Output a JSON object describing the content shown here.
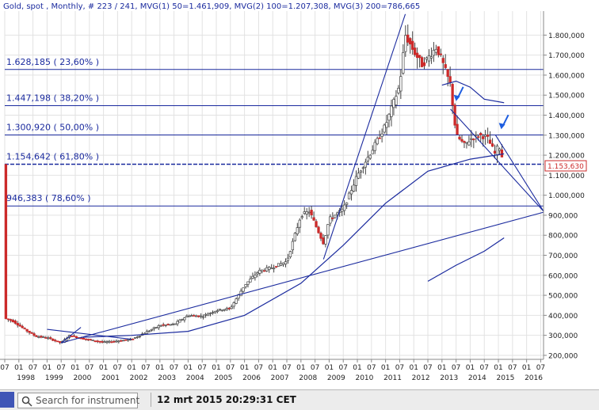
{
  "header": {
    "text": "Gold, spot , Monthly, # 223 / 241, MVG(1) 50=1.461,909, MVG(2) 100=1.207,308, MVG(3) 200=786,665"
  },
  "fib_levels": [
    {
      "label": "1.628,185  ( 23,60% )",
      "value": 1628185
    },
    {
      "label": "1.447,198  ( 38,20% )",
      "value": 1447198
    },
    {
      "label": "1.300,920  ( 50,00% )",
      "value": 1300920
    },
    {
      "label": "1.154,642  ( 61,80% )",
      "value": 1154642
    },
    {
      "label": "946,383  ( 78,60% )",
      "value": 946383
    }
  ],
  "last_price": "1.153,630",
  "footer": {
    "search_placeholder": "Search for instrument",
    "timestamp": "12 mrt 2015 20:29:31 CET"
  },
  "colors": {
    "line": "#1a2a9e",
    "candle_up": "#ffffff",
    "candle_down": "#cc2a2a",
    "arrow": "#1e5ee0",
    "grid": "#e2e2e2"
  },
  "chart_data": {
    "type": "candlestick",
    "title": "Gold, spot , Monthly",
    "yaxis_ticks": [
      200000,
      300000,
      400000,
      500000,
      600000,
      700000,
      800000,
      900000,
      1000000,
      1100000,
      1200000,
      1300000,
      1400000,
      1500000,
      1600000,
      1700000,
      1800000
    ],
    "ytick_labels": [
      "200,000",
      "300,000",
      "400,000",
      "500,000",
      "600,000",
      "700,000",
      "800,000",
      "900,000",
      "1.000,000",
      "1.100,000",
      "1.200,000",
      "1.300,000",
      "1.400,000",
      "1.500,000",
      "1.600,000",
      "1.700,000",
      "1.800,000"
    ],
    "ylim": [
      180000,
      1920000
    ],
    "xlim": [
      1997.5,
      2016.6
    ],
    "years": [
      1998,
      1999,
      2000,
      2001,
      2002,
      2003,
      2004,
      2005,
      2006,
      2007,
      2008,
      2009,
      2010,
      2011,
      2012,
      2013,
      2014,
      2015,
      2016
    ],
    "month_ticks": [
      "01",
      "07"
    ],
    "price_anchors": [
      [
        1997.5,
        385000
      ],
      [
        1997.8,
        370000
      ],
      [
        1998.2,
        330000
      ],
      [
        1998.6,
        295000
      ],
      [
        1999.0,
        288000
      ],
      [
        1999.5,
        262000
      ],
      [
        1999.8,
        300000
      ],
      [
        2000.2,
        285000
      ],
      [
        2000.6,
        275000
      ],
      [
        2001.0,
        265000
      ],
      [
        2001.5,
        272000
      ],
      [
        2002.0,
        280000
      ],
      [
        2002.5,
        315000
      ],
      [
        2003.0,
        350000
      ],
      [
        2003.5,
        355000
      ],
      [
        2004.0,
        400000
      ],
      [
        2004.5,
        395000
      ],
      [
        2005.0,
        425000
      ],
      [
        2005.5,
        435000
      ],
      [
        2006.0,
        550000
      ],
      [
        2006.5,
        620000
      ],
      [
        2007.0,
        640000
      ],
      [
        2007.5,
        670000
      ],
      [
        2008.0,
        900000
      ],
      [
        2008.3,
        920000
      ],
      [
        2008.8,
        760000
      ],
      [
        2009.0,
        880000
      ],
      [
        2009.5,
        930000
      ],
      [
        2010.0,
        1100000
      ],
      [
        2010.5,
        1220000
      ],
      [
        2011.0,
        1350000
      ],
      [
        2011.5,
        1550000
      ],
      [
        2011.7,
        1800000
      ],
      [
        2012.0,
        1720000
      ],
      [
        2012.3,
        1650000
      ],
      [
        2012.8,
        1740000
      ],
      [
        2013.0,
        1670000
      ],
      [
        2013.3,
        1550000
      ],
      [
        2013.5,
        1300000
      ],
      [
        2013.8,
        1250000
      ],
      [
        2014.0,
        1280000
      ],
      [
        2014.3,
        1300000
      ],
      [
        2014.6,
        1290000
      ],
      [
        2014.9,
        1200000
      ],
      [
        2015.0,
        1260000
      ],
      [
        2015.2,
        1154000
      ]
    ],
    "moving_averages": [
      {
        "name": "MVG(1) 50",
        "last": 1461909,
        "points": [
          [
            2013.0,
            1550000
          ],
          [
            2013.5,
            1570000
          ],
          [
            2014.0,
            1540000
          ],
          [
            2014.5,
            1480000
          ],
          [
            2015.2,
            1462000
          ]
        ]
      },
      {
        "name": "MVG(2) 100",
        "last": 1207308,
        "points": [
          [
            2000.2,
            290000
          ],
          [
            2002.0,
            300000
          ],
          [
            2004.0,
            320000
          ],
          [
            2006.0,
            400000
          ],
          [
            2008.0,
            560000
          ],
          [
            2009.5,
            750000
          ],
          [
            2011.0,
            960000
          ],
          [
            2012.5,
            1120000
          ],
          [
            2014.0,
            1180000
          ],
          [
            2015.2,
            1207000
          ]
        ]
      },
      {
        "name": "MVG(3) 200",
        "last": 786665,
        "points": [
          [
            2012.5,
            570000
          ],
          [
            2013.5,
            650000
          ],
          [
            2014.5,
            720000
          ],
          [
            2015.2,
            787000
          ]
        ]
      }
    ],
    "trendlines": [
      {
        "from": [
          1999.5,
          262000
        ],
        "to": [
          2016.6,
          915000
        ]
      },
      {
        "from": [
          1999.5,
          262000
        ],
        "to": [
          2000.2,
          340000
        ]
      },
      {
        "from": [
          2008.8,
          680000
        ],
        "to": [
          2011.7,
          1905000
        ]
      },
      {
        "from": [
          2013.3,
          1430000
        ],
        "to": [
          2016.6,
          920000
        ]
      },
      {
        "from": [
          2014.9,
          1300000
        ],
        "to": [
          2016.6,
          920000
        ]
      },
      {
        "from": [
          1999.0,
          330000
        ],
        "to": [
          2002.0,
          280000
        ]
      }
    ],
    "annotations": [
      "arrow 2013.5",
      "arrow 2015.1"
    ]
  }
}
